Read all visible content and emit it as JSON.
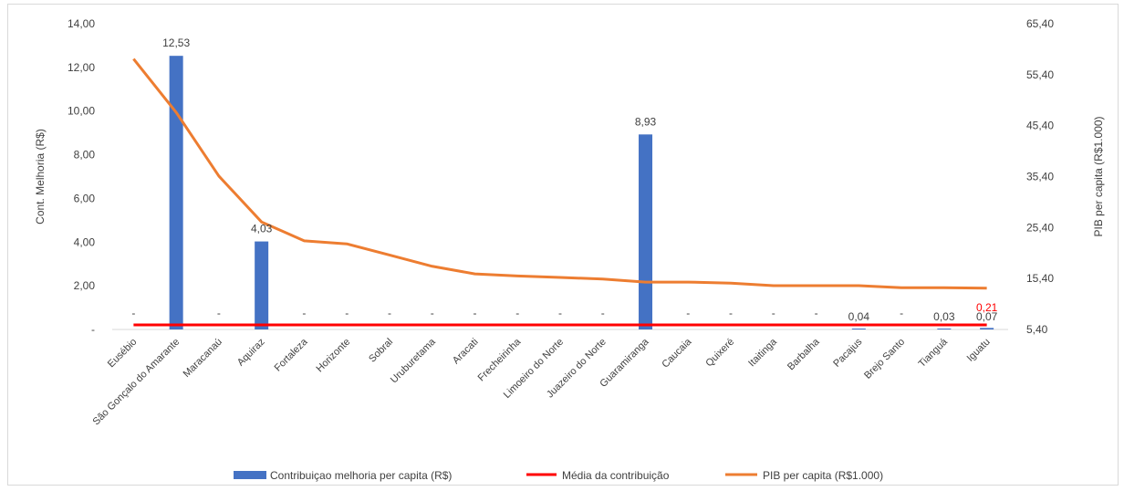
{
  "chart_data": {
    "type": "bar",
    "categories": [
      "Eusébio",
      "São Gonçalo do Amarante",
      "Maracanaú",
      "Aquiraz",
      "Fortaleza",
      "Horizonte",
      "Sobral",
      "Uruburetama",
      "Aracati",
      "Frecheirinha",
      "Limoeiro do Norte",
      "Juazeiro do Norte",
      "Guaramiranga",
      "Caucaia",
      "Quixeré",
      "Itaitinga",
      "Barbalha",
      "Pacajus",
      "Brejo Santo",
      "Tianguá",
      "Iguatu"
    ],
    "series": [
      {
        "name": "Contribuiçao melhoria per capita (R$)",
        "type": "bar",
        "axis": "left",
        "color": "#4472c4",
        "values": [
          0,
          12.53,
          0,
          4.03,
          0,
          0,
          0,
          0,
          0,
          0,
          0,
          0,
          8.93,
          0,
          0,
          0,
          0,
          0.04,
          0,
          0.03,
          0.07
        ],
        "labels": [
          "-",
          "12,53",
          "-",
          "4,03",
          "-",
          "-",
          "-",
          "-",
          "-",
          "-",
          "-",
          "-",
          "8,93",
          "-",
          "-",
          "-",
          "-",
          "0,04",
          "-",
          "0,03",
          "0,07"
        ]
      },
      {
        "name": "Média da contribuição",
        "type": "line",
        "axis": "left",
        "color": "#ff0000",
        "values": [
          0.21,
          0.21,
          0.21,
          0.21,
          0.21,
          0.21,
          0.21,
          0.21,
          0.21,
          0.21,
          0.21,
          0.21,
          0.21,
          0.21,
          0.21,
          0.21,
          0.21,
          0.21,
          0.21,
          0.21,
          0.21
        ],
        "end_label": "0,21"
      },
      {
        "name": "PIB per capita (R$1.000)",
        "type": "line",
        "axis": "right",
        "color": "#ed7d31",
        "values": [
          58.5,
          48.0,
          35.5,
          26.5,
          22.8,
          22.2,
          20.0,
          17.8,
          16.3,
          15.9,
          15.6,
          15.3,
          14.7,
          14.7,
          14.5,
          14.0,
          14.0,
          14.0,
          13.6,
          13.6,
          13.5
        ]
      }
    ],
    "y_left": {
      "label": "Cont. Melhoria (R$)",
      "ylim": [
        0,
        14
      ],
      "ticks": [
        0,
        2,
        4,
        6,
        8,
        10,
        12,
        14
      ],
      "tick_labels": [
        "-",
        "2,00",
        "4,00",
        "6,00",
        "8,00",
        "10,00",
        "12,00",
        "14,00"
      ]
    },
    "y_right": {
      "label": "PIB per capita (R$1.000)",
      "ylim": [
        5.4,
        65.4
      ],
      "ticks": [
        5.4,
        15.4,
        25.4,
        35.4,
        45.4,
        55.4,
        65.4
      ],
      "tick_labels": [
        "5,40",
        "15,40",
        "25,40",
        "35,40",
        "45,40",
        "55,40",
        "65,40"
      ]
    },
    "grid": false,
    "legend_position": "bottom"
  }
}
